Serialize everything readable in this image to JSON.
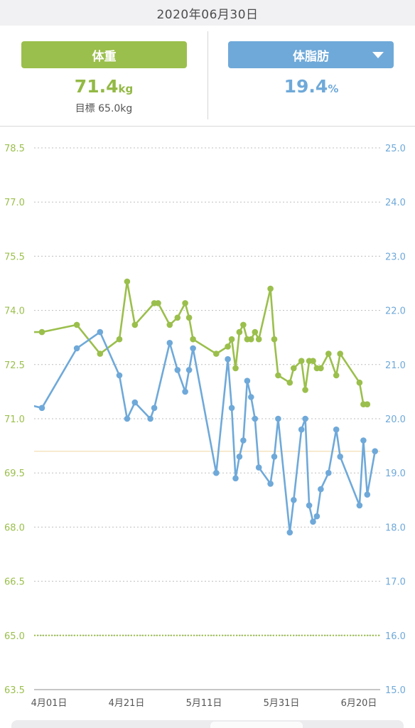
{
  "header": {
    "date": "2020年06月30日",
    "weight": {
      "tab_label": "体重",
      "value": "71.4",
      "unit": "kg",
      "goal_text": "目標 65.0kg"
    },
    "body_fat": {
      "tab_label": "体脂肪",
      "value": "19.4",
      "unit": "%",
      "dropdown_icon": "caret-down-icon"
    }
  },
  "colors": {
    "weight": "#9bbf4c",
    "body_fat": "#6fa9d9",
    "target_line": "#f3dfb3",
    "grid": "#bfbfbf"
  },
  "chart_data": {
    "type": "line",
    "title": "",
    "xlabel": "",
    "ylabel": "",
    "y2label": "",
    "grid": true,
    "x_ticks": [
      {
        "date": "2020-04-01",
        "label": "4月01日"
      },
      {
        "date": "2020-04-21",
        "label": "4月21日"
      },
      {
        "date": "2020-05-11",
        "label": "5月11日"
      },
      {
        "date": "2020-05-31",
        "label": "5月31日"
      },
      {
        "date": "2020-06-20",
        "label": "6月20日"
      }
    ],
    "y_left": {
      "range": [
        63.5,
        78.5
      ],
      "ticks": [
        "63.5",
        "65.0",
        "66.5",
        "68.0",
        "69.5",
        "71.0",
        "72.5",
        "74.0",
        "75.5",
        "77.0",
        "78.5"
      ]
    },
    "y_right": {
      "range": [
        15.0,
        25.0
      ],
      "ticks": [
        "15.0",
        "16.0",
        "17.0",
        "18.0",
        "19.0",
        "20.0",
        "21.0",
        "22.0",
        "23.0",
        "24.0",
        "25.0"
      ]
    },
    "reference_lines": [
      {
        "axis": "left",
        "value": 65.0,
        "style": "dotted",
        "color": "#9bbf4c"
      },
      {
        "axis": "right",
        "value": 19.4,
        "style": "solid",
        "color": "#f3dfb3"
      }
    ],
    "series": [
      {
        "axis": "left",
        "color": "#9bbf4c",
        "points": [
          [
            "2020-03-26",
            73.4
          ],
          [
            "2020-04-01",
            73.4
          ],
          [
            "2020-04-10",
            73.6
          ],
          [
            "2020-04-16",
            72.8
          ],
          [
            "2020-04-21",
            73.2
          ],
          [
            "2020-04-23",
            74.8
          ],
          [
            "2020-04-25",
            73.6
          ],
          [
            "2020-04-30",
            74.2
          ],
          [
            "2020-05-01",
            74.2
          ],
          [
            "2020-05-04",
            73.6
          ],
          [
            "2020-05-06",
            73.8
          ],
          [
            "2020-05-08",
            74.2
          ],
          [
            "2020-05-09",
            73.8
          ],
          [
            "2020-05-10",
            73.2
          ],
          [
            "2020-05-16",
            72.8
          ],
          [
            "2020-05-19",
            73.0
          ],
          [
            "2020-05-20",
            73.2
          ],
          [
            "2020-05-21",
            72.4
          ],
          [
            "2020-05-22",
            73.4
          ],
          [
            "2020-05-23",
            73.6
          ],
          [
            "2020-05-24",
            73.2
          ],
          [
            "2020-05-25",
            73.2
          ],
          [
            "2020-05-26",
            73.4
          ],
          [
            "2020-05-27",
            73.2
          ],
          [
            "2020-05-30",
            74.6
          ],
          [
            "2020-05-31",
            73.2
          ],
          [
            "2020-06-01",
            72.2
          ],
          [
            "2020-06-04",
            72.0
          ],
          [
            "2020-06-05",
            72.4
          ],
          [
            "2020-06-07",
            72.6
          ],
          [
            "2020-06-08",
            71.8
          ],
          [
            "2020-06-09",
            72.6
          ],
          [
            "2020-06-10",
            72.6
          ],
          [
            "2020-06-11",
            72.4
          ],
          [
            "2020-06-12",
            72.4
          ],
          [
            "2020-06-14",
            72.8
          ],
          [
            "2020-06-16",
            72.2
          ],
          [
            "2020-06-17",
            72.8
          ],
          [
            "2020-06-22",
            72.0
          ],
          [
            "2020-06-23",
            71.4
          ],
          [
            "2020-06-24",
            71.4
          ]
        ]
      },
      {
        "axis": "right",
        "color": "#6fa9d9",
        "points": [
          [
            "2020-03-26",
            20.3
          ],
          [
            "2020-04-01",
            20.2
          ],
          [
            "2020-04-10",
            21.3
          ],
          [
            "2020-04-16",
            21.6
          ],
          [
            "2020-04-21",
            20.8
          ],
          [
            "2020-04-23",
            20.0
          ],
          [
            "2020-04-25",
            20.3
          ],
          [
            "2020-04-29",
            20.0
          ],
          [
            "2020-04-30",
            20.2
          ],
          [
            "2020-05-04",
            21.4
          ],
          [
            "2020-05-06",
            20.9
          ],
          [
            "2020-05-08",
            20.5
          ],
          [
            "2020-05-09",
            20.9
          ],
          [
            "2020-05-10",
            21.3
          ],
          [
            "2020-05-16",
            19.0
          ],
          [
            "2020-05-19",
            21.1
          ],
          [
            "2020-05-20",
            20.2
          ],
          [
            "2020-05-21",
            18.9
          ],
          [
            "2020-05-22",
            19.3
          ],
          [
            "2020-05-23",
            19.6
          ],
          [
            "2020-05-24",
            20.7
          ],
          [
            "2020-05-25",
            20.4
          ],
          [
            "2020-05-26",
            20.0
          ],
          [
            "2020-05-27",
            19.1
          ],
          [
            "2020-05-30",
            18.8
          ],
          [
            "2020-05-31",
            19.3
          ],
          [
            "2020-06-01",
            20.0
          ],
          [
            "2020-06-04",
            17.9
          ],
          [
            "2020-06-05",
            18.5
          ],
          [
            "2020-06-07",
            19.8
          ],
          [
            "2020-06-08",
            20.0
          ],
          [
            "2020-06-09",
            18.4
          ],
          [
            "2020-06-10",
            18.1
          ],
          [
            "2020-06-11",
            18.2
          ],
          [
            "2020-06-12",
            18.7
          ],
          [
            "2020-06-14",
            19.0
          ],
          [
            "2020-06-16",
            19.8
          ],
          [
            "2020-06-17",
            19.3
          ],
          [
            "2020-06-22",
            18.4
          ],
          [
            "2020-06-23",
            19.6
          ],
          [
            "2020-06-24",
            18.6
          ],
          [
            "2020-06-26",
            19.4
          ]
        ]
      }
    ]
  }
}
